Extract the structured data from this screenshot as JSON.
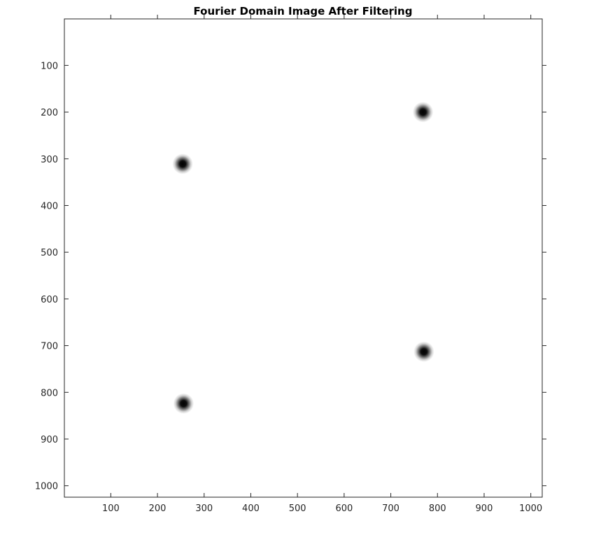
{
  "chart_data": {
    "type": "heatmap",
    "title": "Fourier Domain Image After Filtering",
    "xlabel": "",
    "ylabel": "",
    "xlim": [
      0.5,
      1024.5
    ],
    "ylim": [
      0.5,
      1024.5
    ],
    "y_direction": "reversed",
    "x_ticks": [
      100,
      200,
      300,
      400,
      500,
      600,
      700,
      800,
      900,
      1000
    ],
    "y_ticks": [
      100,
      200,
      300,
      400,
      500,
      600,
      700,
      800,
      900,
      1000
    ],
    "x_tick_labels": [
      "100",
      "200",
      "300",
      "400",
      "500",
      "600",
      "700",
      "800",
      "900",
      "1000"
    ],
    "y_tick_labels": [
      "100",
      "200",
      "300",
      "400",
      "500",
      "600",
      "700",
      "800",
      "900",
      "1000"
    ],
    "colormap": "gray",
    "background_value": "white",
    "grid": false,
    "legend": "none",
    "points": [
      {
        "x": 769,
        "y": 200
      },
      {
        "x": 254,
        "y": 311
      },
      {
        "x": 771,
        "y": 713
      },
      {
        "x": 256,
        "y": 824
      }
    ],
    "spot_radius_data_units": 22,
    "spot_color": "#000000"
  }
}
